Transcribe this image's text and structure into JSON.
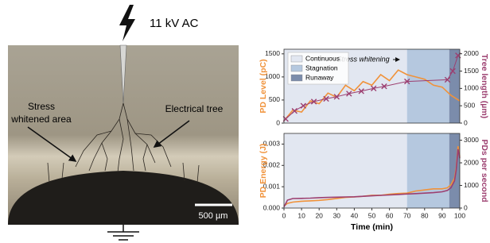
{
  "image": {
    "voltage_label": "11 kV AC",
    "stress_label": [
      "Stress",
      "whitened area"
    ],
    "tree_label": "Electrical tree",
    "scale_label": "500 µm"
  },
  "chart_data": [
    {
      "type": "line",
      "ylabel": "PD Level (pC)",
      "y2label": "Tree length (µm)",
      "annotation": "Stress whitening",
      "legend": "upper left",
      "xlim": [
        0,
        100
      ],
      "ylim": [
        0,
        1600
      ],
      "yticks": [
        0,
        500,
        1000,
        1500
      ],
      "y2lim": [
        0,
        2130
      ],
      "y2ticks": [
        0,
        500,
        1000,
        1500,
        2000
      ],
      "regions": [
        {
          "name": "Continuous",
          "color": "#e2e7f1",
          "range": [
            0,
            70
          ]
        },
        {
          "name": "Stagnation",
          "color": "#b5c8df",
          "range": [
            70,
            94
          ]
        },
        {
          "name": "Runaway",
          "color": "#7b8cab",
          "range": [
            94,
            100
          ]
        }
      ],
      "series": [
        {
          "color": "#f0923a",
          "x": [
            0,
            5,
            10,
            15,
            20,
            25,
            30,
            35,
            40,
            45,
            50,
            55,
            60,
            65,
            70,
            75,
            80,
            85,
            90,
            95,
            100
          ],
          "values": [
            50,
            280,
            240,
            480,
            420,
            650,
            560,
            820,
            700,
            900,
            820,
            1050,
            920,
            1150,
            1050,
            1000,
            950,
            820,
            780,
            600,
            480
          ]
        },
        {
          "color": "#9c3f70",
          "axis": "y2",
          "marker": "x",
          "x": [
            1,
            6,
            11,
            17,
            24,
            30,
            37,
            44,
            51,
            57,
            70,
            93,
            96,
            99
          ],
          "values": [
            120,
            350,
            500,
            620,
            700,
            760,
            850,
            920,
            1000,
            1060,
            1200,
            1250,
            1500,
            1950
          ]
        }
      ]
    },
    {
      "type": "line",
      "ylabel": "PD Energy (J)",
      "y2label": "PDs per second",
      "xlabel": "Time (min)",
      "xlim": [
        0,
        100
      ],
      "xticks": [
        0,
        10,
        20,
        30,
        40,
        50,
        60,
        70,
        80,
        90,
        100
      ],
      "ylim": [
        0,
        0.0035
      ],
      "yticks": [
        {
          "value": 0,
          "label": "0.000"
        },
        {
          "value": 0.001,
          "label": "0.001"
        },
        {
          "value": 0.002,
          "label": "0.002"
        },
        {
          "value": 0.003,
          "label": "0.003"
        }
      ],
      "y2lim": [
        0,
        3300
      ],
      "y2ticks": [
        0,
        1000,
        2000,
        3000
      ],
      "regions": [
        {
          "color": "#e2e7f1",
          "range": [
            0,
            70
          ]
        },
        {
          "color": "#b5c8df",
          "range": [
            70,
            94
          ]
        },
        {
          "color": "#7b8cab",
          "range": [
            94,
            100
          ]
        }
      ],
      "series": [
        {
          "color": "#f0923a",
          "x": [
            0,
            2,
            5,
            10,
            15,
            20,
            25,
            30,
            35,
            40,
            45,
            50,
            55,
            60,
            65,
            70,
            75,
            80,
            85,
            90,
            93,
            95,
            97,
            98,
            99,
            100
          ],
          "values": [
            0.0001,
            0.00022,
            0.00028,
            0.00032,
            0.00034,
            0.00036,
            0.0004,
            0.00045,
            0.0005,
            0.00052,
            0.00055,
            0.0006,
            0.0006,
            0.00065,
            0.00068,
            0.0007,
            0.0008,
            0.00085,
            0.0009,
            0.0009,
            0.00095,
            0.0011,
            0.0014,
            0.0019,
            0.0029,
            0.0024
          ]
        },
        {
          "color": "#9c3f70",
          "axis": "y2",
          "x": [
            0,
            2,
            5,
            10,
            15,
            20,
            25,
            30,
            35,
            40,
            45,
            50,
            55,
            60,
            65,
            70,
            75,
            80,
            85,
            90,
            93,
            95,
            97,
            98,
            99,
            100
          ],
          "values": [
            50,
            350,
            420,
            430,
            440,
            460,
            470,
            480,
            490,
            500,
            520,
            540,
            560,
            580,
            600,
            620,
            640,
            660,
            680,
            720,
            780,
            900,
            1200,
            1700,
            2600,
            2200
          ]
        }
      ]
    }
  ]
}
